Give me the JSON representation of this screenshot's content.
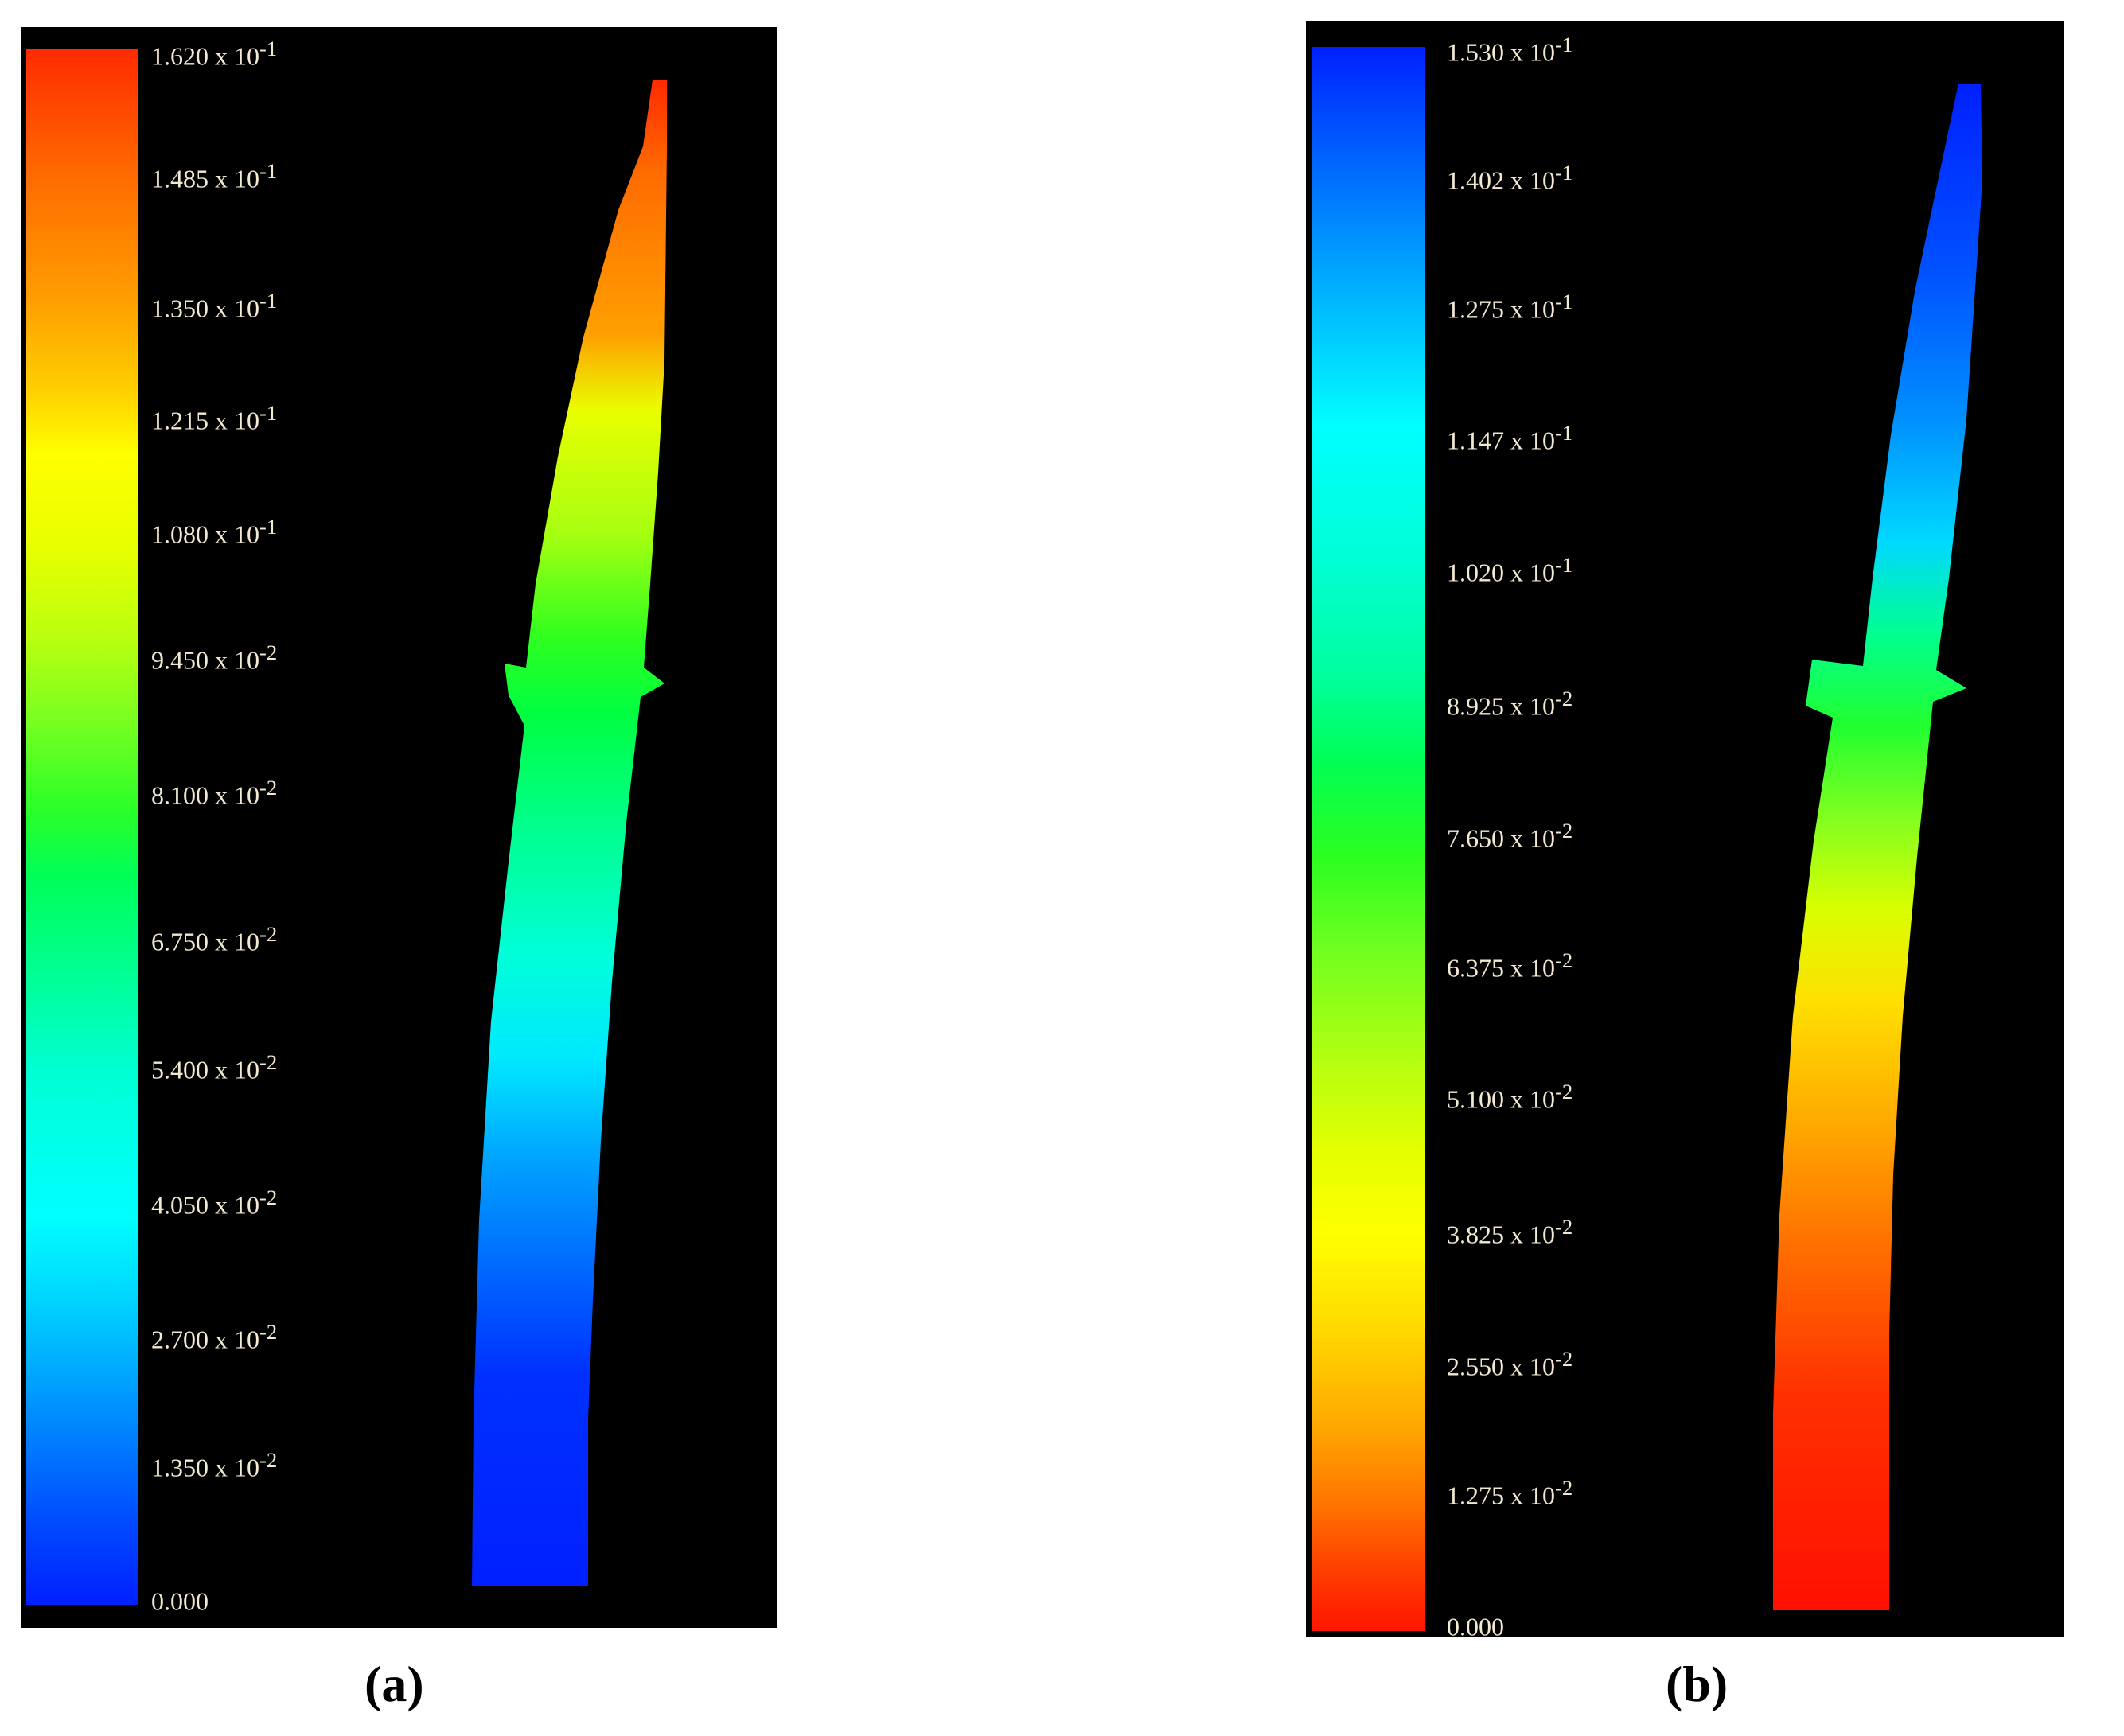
{
  "panel_a": {
    "caption": "(a)",
    "scale": {
      "direction": "max-top",
      "top_color": "#ff2a00",
      "bottom_color": "#0020ff",
      "ticks": [
        {
          "mantissa": "1.620 x 10",
          "exp": "-1"
        },
        {
          "mantissa": "1.485 x 10",
          "exp": "-1"
        },
        {
          "mantissa": "1.350 x 10",
          "exp": "-1"
        },
        {
          "mantissa": "1.215 x 10",
          "exp": "-1"
        },
        {
          "mantissa": "1.080 x 10",
          "exp": "-1"
        },
        {
          "mantissa": "9.450 x 10",
          "exp": "-2"
        },
        {
          "mantissa": "8.100 x 10",
          "exp": "-2"
        },
        {
          "mantissa": "6.750 x 10",
          "exp": "-2"
        },
        {
          "mantissa": "5.400 x 10",
          "exp": "-2"
        },
        {
          "mantissa": "4.050 x 10",
          "exp": "-2"
        },
        {
          "mantissa": "2.700 x 10",
          "exp": "-2"
        },
        {
          "mantissa": "1.350 x 10",
          "exp": "-2"
        },
        {
          "mantissa": "0.000",
          "exp": ""
        }
      ]
    }
  },
  "panel_b": {
    "caption": "(b)",
    "scale": {
      "direction": "max-top",
      "top_color": "#0020ff",
      "bottom_color": "#ff1500",
      "ticks": [
        {
          "mantissa": "1.530 x 10",
          "exp": "-1"
        },
        {
          "mantissa": "1.402 x 10",
          "exp": "-1"
        },
        {
          "mantissa": "1.275 x 10",
          "exp": "-1"
        },
        {
          "mantissa": "1.147 x 10",
          "exp": "-1"
        },
        {
          "mantissa": "1.020 x 10",
          "exp": "-1"
        },
        {
          "mantissa": "8.925 x 10",
          "exp": "-2"
        },
        {
          "mantissa": "7.650 x 10",
          "exp": "-2"
        },
        {
          "mantissa": "6.375 x 10",
          "exp": "-2"
        },
        {
          "mantissa": "5.100 x 10",
          "exp": "-2"
        },
        {
          "mantissa": "3.825 x 10",
          "exp": "-2"
        },
        {
          "mantissa": "2.550 x 10",
          "exp": "-2"
        },
        {
          "mantissa": "1.275 x 10",
          "exp": "-2"
        },
        {
          "mantissa": "0.000",
          "exp": ""
        }
      ]
    }
  }
}
